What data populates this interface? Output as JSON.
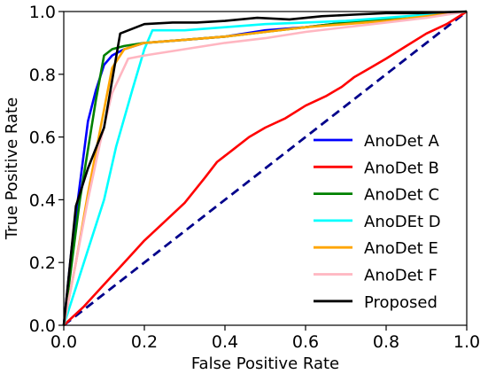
{
  "chart_data": {
    "type": "line",
    "title": "",
    "xlabel": "False Positive Rate",
    "ylabel": "True Positive Rate",
    "xlim": [
      0.0,
      1.0
    ],
    "ylim": [
      0.0,
      1.0
    ],
    "xticks": [
      "0.0",
      "0.2",
      "0.4",
      "0.6",
      "0.8",
      "1.0"
    ],
    "yticks": [
      "0.0",
      "0.2",
      "0.4",
      "0.6",
      "0.8",
      "1.0"
    ],
    "grid": false,
    "legend_position": "lower-right",
    "diagonal": {
      "style": "dashed",
      "color": "#00008b",
      "x": [
        0.0,
        1.0
      ],
      "y": [
        0.0,
        1.0
      ]
    },
    "series": [
      {
        "name": "AnoDet A",
        "color": "#0000ff",
        "x": [
          0.0,
          0.02,
          0.04,
          0.06,
          0.08,
          0.1,
          0.12,
          0.15,
          0.2,
          0.3,
          0.4,
          0.5,
          0.6,
          0.7,
          0.8,
          0.9,
          1.0
        ],
        "y": [
          0.0,
          0.25,
          0.45,
          0.65,
          0.75,
          0.83,
          0.86,
          0.88,
          0.9,
          0.91,
          0.92,
          0.94,
          0.95,
          0.965,
          0.975,
          0.985,
          1.0
        ]
      },
      {
        "name": "AnoDet B",
        "color": "#ff0000",
        "x": [
          0.0,
          0.05,
          0.1,
          0.15,
          0.2,
          0.25,
          0.3,
          0.35,
          0.38,
          0.42,
          0.46,
          0.5,
          0.55,
          0.6,
          0.65,
          0.69,
          0.72,
          0.76,
          0.8,
          0.85,
          0.9,
          0.95,
          1.0
        ],
        "y": [
          0.0,
          0.06,
          0.13,
          0.2,
          0.27,
          0.33,
          0.39,
          0.47,
          0.52,
          0.56,
          0.6,
          0.63,
          0.66,
          0.7,
          0.73,
          0.76,
          0.79,
          0.82,
          0.85,
          0.89,
          0.93,
          0.96,
          1.0
        ]
      },
      {
        "name": "AnoDet C",
        "color": "#008000",
        "x": [
          0.0,
          0.02,
          0.04,
          0.06,
          0.08,
          0.1,
          0.12,
          0.15,
          0.2,
          0.3,
          0.4,
          0.5,
          0.6,
          0.7,
          0.8,
          0.9,
          1.0
        ],
        "y": [
          0.0,
          0.2,
          0.4,
          0.56,
          0.72,
          0.86,
          0.88,
          0.89,
          0.9,
          0.91,
          0.92,
          0.935,
          0.95,
          0.965,
          0.975,
          0.985,
          1.0
        ]
      },
      {
        "name": "AnoDEt D",
        "color": "#00ffff",
        "x": [
          0.0,
          0.03,
          0.06,
          0.1,
          0.13,
          0.17,
          0.2,
          0.22,
          0.3,
          0.4,
          0.5,
          0.6,
          0.7,
          0.8,
          0.9,
          1.0
        ],
        "y": [
          0.0,
          0.12,
          0.24,
          0.4,
          0.57,
          0.75,
          0.88,
          0.94,
          0.94,
          0.95,
          0.96,
          0.965,
          0.97,
          0.98,
          0.99,
          1.0
        ]
      },
      {
        "name": "AnoDet E",
        "color": "#ffa500",
        "x": [
          0.0,
          0.03,
          0.06,
          0.09,
          0.12,
          0.15,
          0.2,
          0.3,
          0.4,
          0.5,
          0.6,
          0.7,
          0.8,
          0.9,
          1.0
        ],
        "y": [
          0.0,
          0.2,
          0.42,
          0.62,
          0.82,
          0.88,
          0.9,
          0.91,
          0.92,
          0.935,
          0.95,
          0.96,
          0.97,
          0.985,
          1.0
        ]
      },
      {
        "name": "AnoDet F",
        "color": "#ffb6c1",
        "x": [
          0.0,
          0.03,
          0.06,
          0.09,
          0.12,
          0.16,
          0.2,
          0.3,
          0.4,
          0.5,
          0.6,
          0.7,
          0.8,
          0.9,
          1.0
        ],
        "y": [
          0.0,
          0.2,
          0.4,
          0.58,
          0.74,
          0.85,
          0.86,
          0.88,
          0.9,
          0.915,
          0.935,
          0.95,
          0.965,
          0.98,
          1.0
        ]
      },
      {
        "name": "Proposed",
        "color": "#000000",
        "x": [
          0.0,
          0.03,
          0.06,
          0.1,
          0.14,
          0.2,
          0.27,
          0.33,
          0.4,
          0.48,
          0.56,
          0.64,
          0.72,
          0.8,
          0.88,
          1.0
        ],
        "y": [
          0.0,
          0.38,
          0.5,
          0.63,
          0.93,
          0.96,
          0.965,
          0.965,
          0.97,
          0.98,
          0.975,
          0.985,
          0.99,
          0.995,
          0.995,
          1.0
        ]
      }
    ]
  }
}
